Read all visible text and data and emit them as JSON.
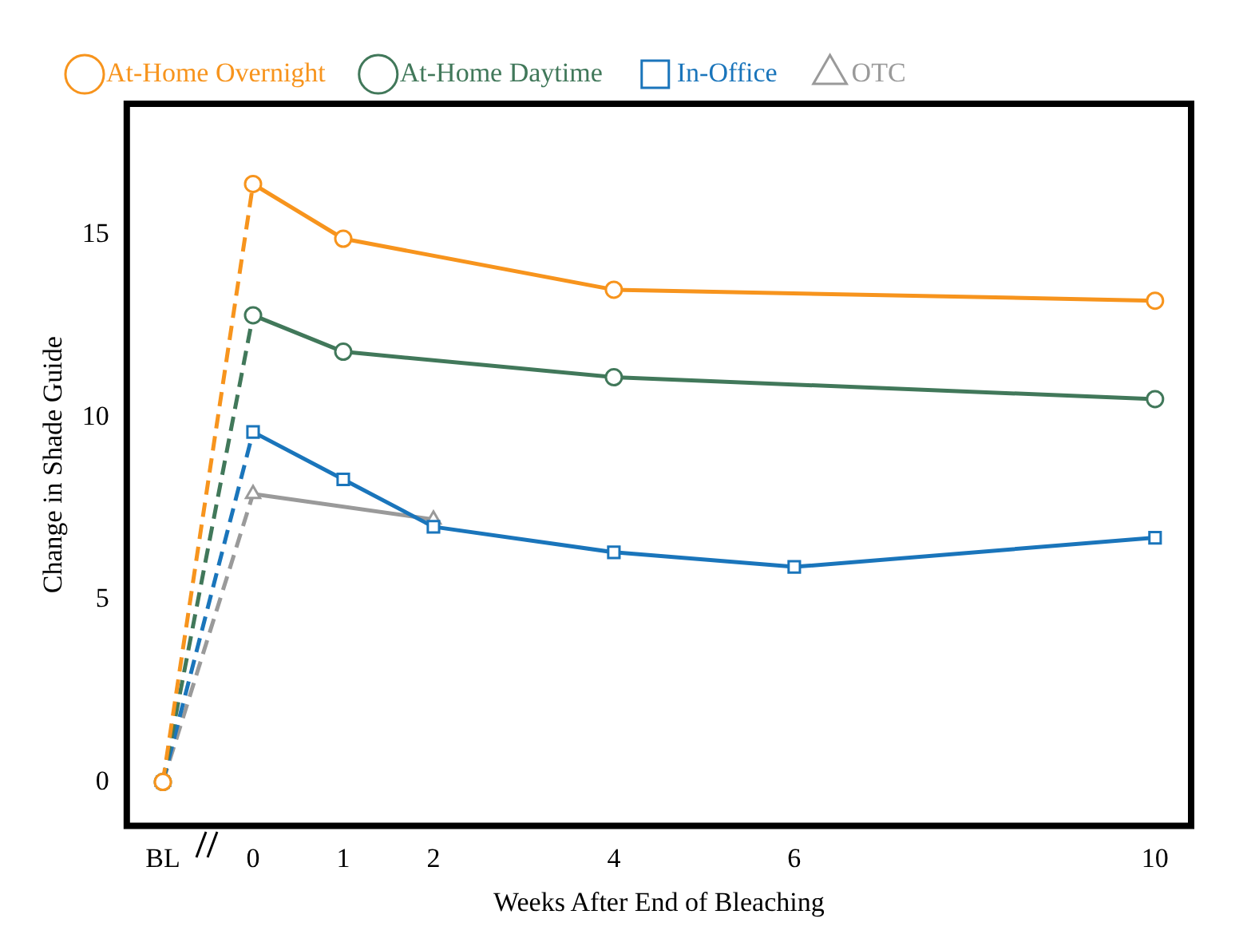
{
  "chart_data": {
    "type": "line",
    "xlabel": "Weeks After End of Bleaching",
    "ylabel": "Change in Shade Guide",
    "xlim": [
      -1.4,
      10.4
    ],
    "ylim": [
      -1.2,
      18.6
    ],
    "xticks": [
      {
        "value": -1,
        "label": "BL"
      },
      0,
      1,
      2,
      4,
      6,
      10
    ],
    "yticks": [
      0,
      5,
      10,
      15
    ],
    "grid": false,
    "legend": "top",
    "line_style": "solid",
    "series": [
      {
        "name": "At-Home Overnight",
        "color": "#f7941d",
        "marker": "circle",
        "x": [
          -1,
          0,
          1,
          4,
          10
        ],
        "values": [
          0,
          16.4,
          14.9,
          13.5,
          13.2
        ]
      },
      {
        "name": "At-Home Daytime",
        "color": "#41785a",
        "marker": "circle",
        "x": [
          -1,
          0,
          1,
          4,
          10
        ],
        "values": [
          0,
          12.8,
          11.8,
          11.1,
          10.5
        ]
      },
      {
        "name": "In-Office",
        "color": "#1a75bb",
        "marker": "square",
        "x": [
          -1,
          0,
          1,
          2,
          4,
          6,
          10
        ],
        "values": [
          0,
          9.6,
          8.3,
          7.0,
          6.3,
          5.9,
          6.7
        ]
      },
      {
        "name": "OTC",
        "color": "#9a9a9a",
        "marker": "triangle",
        "x": [
          -1,
          0,
          2
        ],
        "values": [
          0,
          7.9,
          7.2
        ]
      }
    ]
  }
}
